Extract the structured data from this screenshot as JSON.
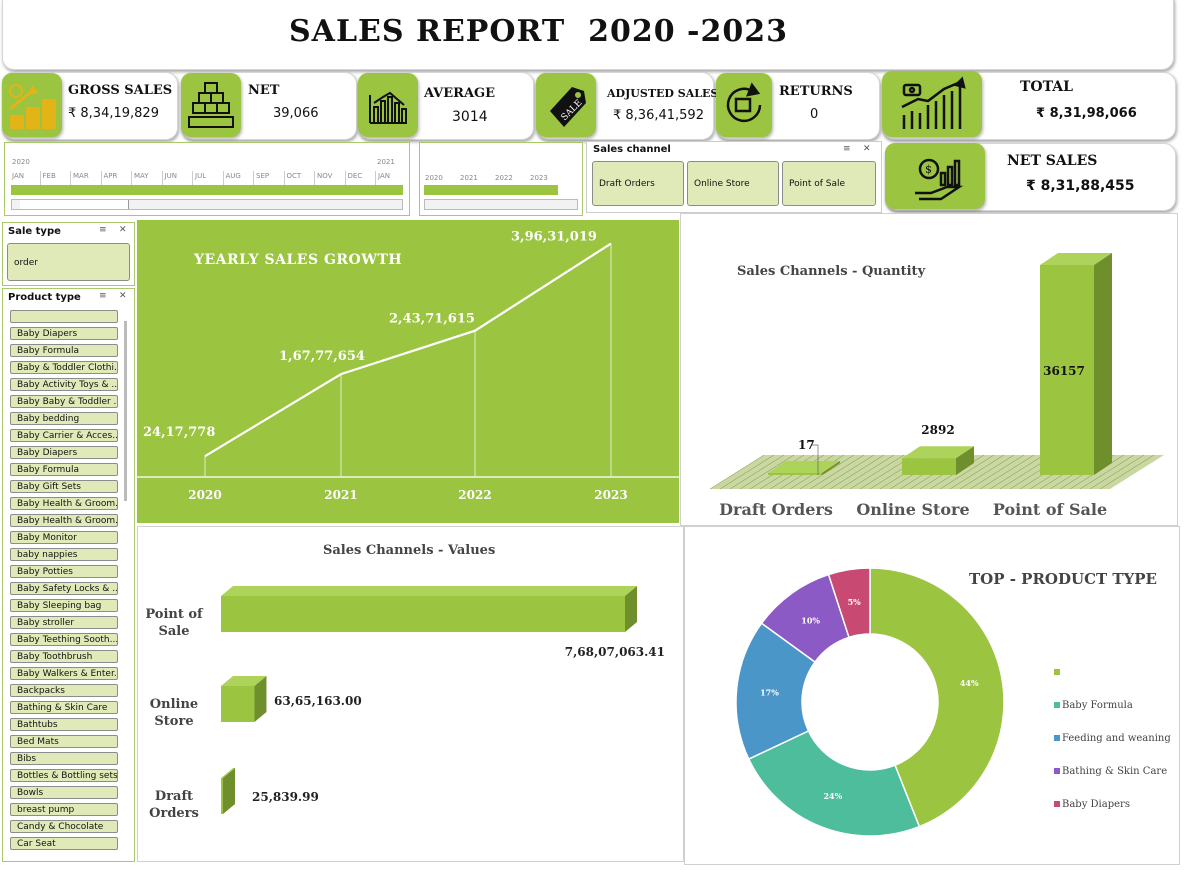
{
  "header": {
    "title": "SALES REPORT  2020 -2023"
  },
  "kpis": [
    {
      "label": "GROSS SALES",
      "value": "₹ 8,34,19,829",
      "icon": "coins-growth-icon"
    },
    {
      "label": "NET",
      "value": "39,066",
      "icon": "boxes-stack-icon"
    },
    {
      "label": "AVERAGE",
      "value": "3014",
      "icon": "bar-chart-icon"
    },
    {
      "label": "ADJUSTED SALES",
      "value": "₹ 8,36,41,592",
      "icon": "sale-tag-icon"
    },
    {
      "label": "RETURNS",
      "value": "0",
      "icon": "return-box-icon"
    },
    {
      "label": "TOTAL",
      "value": "₹ 8,31,98,066",
      "icon": "growth-chart-icon"
    },
    {
      "label": "NET SALES",
      "value": "₹ 8,31,88,455",
      "icon": "money-hand-icon"
    }
  ],
  "timeline_months": {
    "year_start": "2020",
    "year_end": "2021",
    "months": [
      "JAN",
      "FEB",
      "MAR",
      "APR",
      "MAY",
      "JUN",
      "JUL",
      "AUG",
      "SEP",
      "OCT",
      "NOV",
      "DEC",
      "JAN"
    ]
  },
  "timeline_years": {
    "years": [
      "2020",
      "2021",
      "2022",
      "2023"
    ]
  },
  "sales_channel_slicer": {
    "title": "Sales channel",
    "options": [
      "Draft Orders",
      "Online Store",
      "Point of Sale"
    ]
  },
  "sale_type_slicer": {
    "title": "Sale type",
    "options": [
      "order"
    ]
  },
  "product_type_slicer": {
    "title": "Product type",
    "options": [
      "",
      "Baby Diapers",
      "Baby Formula",
      "Baby & Toddler Clothi...",
      "Baby Activity Toys & ...",
      "Baby Baby & Toddler ...",
      "Baby bedding",
      "Baby Carrier & Acces...",
      "Baby Diapers",
      "Baby Formula",
      "Baby Gift Sets",
      "Baby Health & Groom...",
      "Baby Health & Groom...",
      "Baby Monitor",
      "baby nappies",
      "Baby Potties",
      "Baby Safety Locks & ...",
      "Baby Sleeping bag",
      "Baby stroller",
      "Baby Teething Sooth...",
      "Baby Toothbrush",
      "Baby Walkers & Enter...",
      "Backpacks",
      "Bathing & Skin Care",
      "Bathtubs",
      "Bed Mats",
      "Bibs",
      "Bottles & Bottling sets",
      "Bowls",
      "breast pump",
      "Candy & Chocolate",
      "Car Seat"
    ]
  },
  "chart_data": [
    {
      "type": "line",
      "title": "YEARLY SALES GROWTH",
      "x": [
        "2020",
        "2021",
        "2022",
        "2023"
      ],
      "values": [
        2417778,
        16777654,
        24371615,
        39631019
      ],
      "data_labels": [
        "24,17,778",
        "1,67,77,654",
        "2,43,71,615",
        "3,96,31,019"
      ],
      "colors": {
        "background": "#9bc441",
        "line": "#ffffff"
      }
    },
    {
      "type": "bar",
      "title": "Sales Channels -  Quantity",
      "categories": [
        "Draft Orders",
        "Online Store",
        "Point of Sale"
      ],
      "values": [
        17,
        2892,
        36157
      ],
      "data_labels": [
        "17",
        "2892",
        "36157"
      ],
      "colors": {
        "bar": "#9bc441"
      }
    },
    {
      "type": "bar",
      "orientation": "horizontal",
      "title": "Sales Channels - Values",
      "categories": [
        "Point of Sale",
        "Online Store",
        "Draft Orders"
      ],
      "category_lines": [
        [
          "Point of",
          "Sale"
        ],
        [
          "Online",
          "Store"
        ],
        [
          "Draft",
          "Orders"
        ]
      ],
      "values": [
        76807063.41,
        6365163.0,
        25839.99
      ],
      "data_labels": [
        "7,68,07,063.41",
        "63,65,163.00",
        "25,839.99"
      ],
      "colors": {
        "bar": "#9bc441"
      }
    },
    {
      "type": "pie",
      "donut": true,
      "title": "TOP - PRODUCT TYPE",
      "categories": [
        "",
        "Baby Formula",
        "Feeding and weaning",
        "Bathing & Skin Care",
        "Baby Diapers"
      ],
      "values": [
        44,
        24,
        17,
        10,
        5
      ],
      "data_labels": [
        "44%",
        "24%",
        "17%",
        "10%",
        "5%"
      ],
      "colors": [
        "#9bc441",
        "#4dbd9b",
        "#4b96c9",
        "#8c5ac5",
        "#c84a72"
      ]
    }
  ]
}
